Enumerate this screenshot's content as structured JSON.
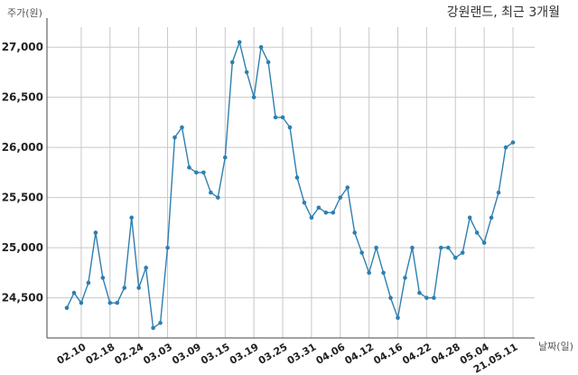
{
  "chart_data": {
    "type": "line",
    "title": "강원랜드, 최근 3개월",
    "ylabel": "주가(원)",
    "xlabel": "날짜(일)",
    "ylim": [
      24100,
      27200
    ],
    "yticks": [
      24500,
      25000,
      25500,
      26000,
      26500,
      27000
    ],
    "ytick_labels": [
      "24,500",
      "25,000",
      "25,500",
      "26,000",
      "26,500",
      "27,000"
    ],
    "xtick_labels": [
      "02.10",
      "02.18",
      "02.24",
      "03.03",
      "03.09",
      "03.15",
      "03.19",
      "03.25",
      "03.31",
      "04.06",
      "04.12",
      "04.16",
      "04.22",
      "04.28",
      "05.04",
      "21.05.11"
    ],
    "xtick_index": [
      2,
      6,
      10,
      14,
      18,
      22,
      26,
      30,
      34,
      38,
      42,
      46,
      50,
      54,
      58,
      62
    ],
    "grid": true,
    "values": [
      24400,
      24550,
      24450,
      24650,
      25150,
      24700,
      24450,
      24450,
      24600,
      25300,
      24600,
      24800,
      24200,
      24250,
      25000,
      26100,
      26200,
      25800,
      25750,
      25750,
      25550,
      25500,
      25900,
      26850,
      27050,
      26750,
      26500,
      27000,
      26850,
      26300,
      26300,
      26200,
      25700,
      25450,
      25300,
      25400,
      25350,
      25350,
      25500,
      25600,
      25150,
      24950,
      24750,
      25000,
      24750,
      24500,
      24300,
      24700,
      25000,
      24550,
      24500,
      24500,
      25000,
      25000,
      24900,
      24950,
      25300,
      25150,
      25050,
      25300,
      25550,
      26000,
      26050
    ]
  }
}
